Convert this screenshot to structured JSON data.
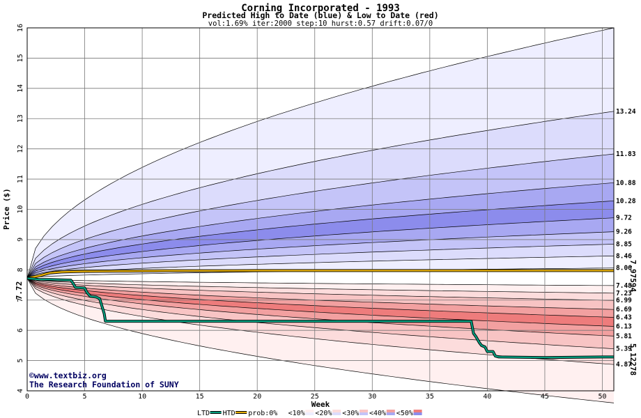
{
  "chart_data": {
    "type": "area",
    "title": "Corning Incorporated - 1993",
    "subtitle": "Predicted High to Date (blue) &  Low to Date (red)",
    "params": "vol:1.69% iter:2000 step:10 hurst:0.57 drift:0.07/0",
    "xlabel": "Week",
    "ylabel": "Price ($)",
    "xlim": [
      0,
      51
    ],
    "ylim": [
      4,
      16
    ],
    "x_ticks": [
      0,
      5,
      10,
      15,
      20,
      25,
      30,
      35,
      40,
      45,
      50
    ],
    "y_ticks": [
      4,
      5,
      6,
      7,
      8,
      9,
      10,
      11,
      12,
      13,
      14,
      15,
      16
    ],
    "grid": true,
    "start_price": 7.72,
    "start_label": "7.72",
    "high_bands": [
      {
        "prob": "0%",
        "end": 16.0,
        "label": "",
        "color": "#ffffff"
      },
      {
        "prob": "10%",
        "end": 13.24,
        "label": "13.24",
        "color": "#eeeeff"
      },
      {
        "prob": "20%",
        "end": 11.83,
        "label": "11.83",
        "color": "#dcdcfc"
      },
      {
        "prob": "30%",
        "end": 10.88,
        "label": "10.88",
        "color": "#c4c4f8"
      },
      {
        "prob": "40%",
        "end": 10.28,
        "label": "10.28",
        "color": "#a8a8f2"
      },
      {
        "prob": "50%",
        "end": 9.72,
        "label": "9.72",
        "color": "#8c8cec"
      },
      {
        "prob": "40%",
        "end": 9.26,
        "label": "9.26",
        "color": "#a8a8f2"
      },
      {
        "prob": "30%",
        "end": 8.85,
        "label": "8.85",
        "color": "#c4c4f8"
      },
      {
        "prob": "20%",
        "end": 8.46,
        "label": "8.46",
        "color": "#dcdcfc"
      },
      {
        "prob": "10%",
        "end": 8.06,
        "label": "8.06",
        "color": "#eeeeff"
      }
    ],
    "low_bands": [
      {
        "prob": "10%",
        "end": 7.48,
        "label": "7.48",
        "color": "#fff0f0"
      },
      {
        "prob": "20%",
        "end": 7.23,
        "label": "7.23",
        "color": "#fcdcdc"
      },
      {
        "prob": "30%",
        "end": 6.99,
        "label": "6.99",
        "color": "#f8c4c4"
      },
      {
        "prob": "40%",
        "end": 6.69,
        "label": "6.69",
        "color": "#f2a0a0"
      },
      {
        "prob": "50%",
        "end": 6.43,
        "label": "6.43",
        "color": "#ee7c7c"
      },
      {
        "prob": "40%",
        "end": 6.13,
        "label": "6.13",
        "color": "#f2a0a0"
      },
      {
        "prob": "30%",
        "end": 5.81,
        "label": "5.81",
        "color": "#f8c4c4"
      },
      {
        "prob": "20%",
        "end": 5.39,
        "label": "5.39",
        "color": "#fcdcdc"
      },
      {
        "prob": "10%",
        "end": 4.87,
        "label": "4.87",
        "color": "#fff0f0"
      },
      {
        "prob": "0%",
        "end": 3.6,
        "label": "",
        "color": "#ffffff"
      }
    ],
    "htd_series": {
      "name": "HTD",
      "color": "#e8b000",
      "end_label": "7.97594",
      "x": [
        0,
        1,
        2,
        3,
        4,
        5,
        7,
        8,
        9,
        10,
        11,
        12,
        14,
        16,
        18,
        20,
        22,
        25,
        30,
        35,
        40,
        44,
        46,
        48,
        50,
        51
      ],
      "y": [
        7.72,
        7.8,
        7.9,
        7.93,
        7.94,
        7.95,
        7.955,
        7.96,
        7.96,
        7.965,
        7.965,
        7.97,
        7.97,
        7.97,
        7.97,
        7.975,
        7.975,
        7.975,
        7.975,
        7.975,
        7.975,
        7.975,
        7.976,
        7.976,
        7.976,
        7.976
      ]
    },
    "ltd_series": {
      "name": "LTD",
      "color": "#00a080",
      "end_label": "5.12278",
      "x": [
        0,
        0.6,
        1,
        2,
        3,
        3.8,
        4,
        4.2,
        5,
        5.2,
        5.5,
        5.8,
        6,
        6.3,
        6.5,
        6.7,
        6.8,
        7,
        10,
        15,
        20,
        25,
        30,
        35,
        38,
        38.6,
        38.8,
        39,
        39.3,
        39.5,
        39.8,
        40,
        40.5,
        40.7,
        41,
        45,
        50,
        51
      ],
      "y": [
        7.72,
        7.7,
        7.68,
        7.68,
        7.67,
        7.66,
        7.55,
        7.42,
        7.4,
        7.25,
        7.12,
        7.11,
        7.1,
        7.05,
        6.8,
        6.55,
        6.3,
        6.3,
        6.3,
        6.3,
        6.3,
        6.3,
        6.3,
        6.3,
        6.3,
        6.3,
        5.9,
        5.8,
        5.6,
        5.5,
        5.45,
        5.3,
        5.3,
        5.15,
        5.12,
        5.1,
        5.12,
        5.12
      ]
    },
    "legend": [
      {
        "label": "LTD",
        "kind": "line",
        "color": "#00a080"
      },
      {
        "label": "HTD",
        "kind": "line",
        "color": "#e8b000"
      },
      {
        "label": "prob:0%",
        "kind": "swatch",
        "color": "#ffffff"
      },
      {
        "label": "<10%",
        "kind": "swatch",
        "color": "#fff0f0"
      },
      {
        "label": "<20%",
        "kind": "swatch",
        "color": "#fcdcdc"
      },
      {
        "label": "<30%",
        "kind": "swatch",
        "color": "#f8c4c4"
      },
      {
        "label": "<40%",
        "kind": "swatch",
        "color": "#f2a0a0"
      },
      {
        "label": "<50%",
        "kind": "swatch",
        "color": "#ee7c7c"
      }
    ],
    "legend_extra_colors": [
      "#eeeeff",
      "#dcdcfc",
      "#c4c4f8",
      "#a8a8f2",
      "#8c8cec"
    ],
    "credit_lines": [
      "©www.textbiz.org",
      "The Research Foundation of SUNY"
    ]
  }
}
